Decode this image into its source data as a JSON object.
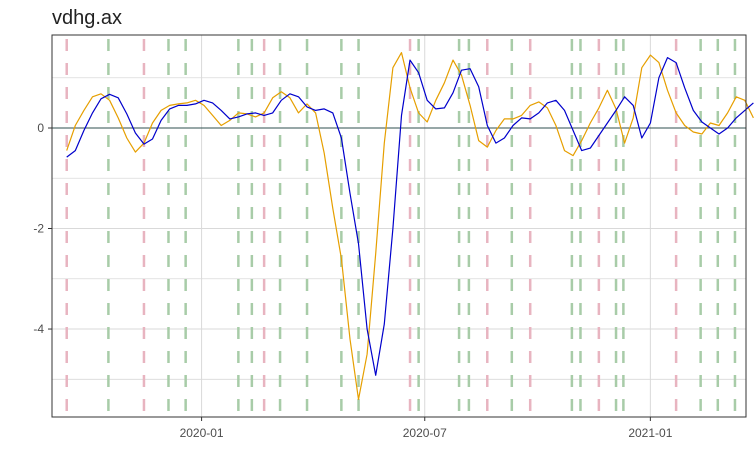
{
  "chart_data": {
    "type": "line",
    "title": "vdhg.ax",
    "xlabel": "",
    "ylabel": "",
    "x_range": [
      "2019-09-01",
      "2021-03-20"
    ],
    "ylim": [
      -5.75,
      1.85
    ],
    "x_ticks": [
      {
        "date": "2020-01-01",
        "label": "2020-01"
      },
      {
        "date": "2020-07-01",
        "label": "2020-07"
      },
      {
        "date": "2021-01-01",
        "label": "2021-01"
      }
    ],
    "y_ticks": [
      {
        "value": 0,
        "label": "0"
      },
      {
        "value": -2,
        "label": "-2"
      },
      {
        "value": -4,
        "label": "-4"
      }
    ],
    "y_minor_ticks": [
      1,
      -1,
      -3,
      -5
    ],
    "grid": true,
    "zero_line": true,
    "colors": {
      "series_dark": "#0000cc",
      "series_light": "#e69f00",
      "vline_red": "#e8b4c0",
      "vline_green": "#a8cca8",
      "grid": "#d9d9d9",
      "zero_line": "#2f4f4f",
      "axis": "#333333"
    },
    "vlines_red": [
      "2019-09-13",
      "2019-11-15",
      "2020-02-21",
      "2020-06-19",
      "2020-08-21",
      "2020-09-25",
      "2020-11-20",
      "2021-01-22"
    ],
    "vlines_green": [
      "2019-10-17",
      "2019-12-05",
      "2019-12-19",
      "2020-01-31",
      "2020-02-11",
      "2020-03-05",
      "2020-03-27",
      "2020-04-24",
      "2020-05-08",
      "2020-06-26",
      "2020-07-29",
      "2020-08-06",
      "2020-09-10",
      "2020-10-29",
      "2020-11-05",
      "2020-12-04",
      "2020-12-10",
      "2021-02-11",
      "2021-02-25",
      "2021-03-11"
    ],
    "series": [
      {
        "color": "dark",
        "points": [
          [
            "2019-09-13",
            -0.58
          ],
          [
            "2019-09-20",
            -0.45
          ],
          [
            "2019-09-27",
            -0.05
          ],
          [
            "2019-10-04",
            0.3
          ],
          [
            "2019-10-11",
            0.58
          ],
          [
            "2019-10-18",
            0.67
          ],
          [
            "2019-10-25",
            0.6
          ],
          [
            "2019-11-01",
            0.28
          ],
          [
            "2019-11-08",
            -0.1
          ],
          [
            "2019-11-15",
            -0.32
          ],
          [
            "2019-11-22",
            -0.22
          ],
          [
            "2019-11-29",
            0.15
          ],
          [
            "2019-12-06",
            0.38
          ],
          [
            "2019-12-13",
            0.45
          ],
          [
            "2019-12-20",
            0.45
          ],
          [
            "2019-12-27",
            0.48
          ],
          [
            "2020-01-03",
            0.55
          ],
          [
            "2020-01-10",
            0.5
          ],
          [
            "2020-01-17",
            0.35
          ],
          [
            "2020-01-24",
            0.18
          ],
          [
            "2020-01-31",
            0.22
          ],
          [
            "2020-02-07",
            0.28
          ],
          [
            "2020-02-14",
            0.3
          ],
          [
            "2020-02-21",
            0.25
          ],
          [
            "2020-02-28",
            0.3
          ],
          [
            "2020-03-06",
            0.55
          ],
          [
            "2020-03-13",
            0.68
          ],
          [
            "2020-03-20",
            0.62
          ],
          [
            "2020-03-27",
            0.42
          ],
          [
            "2020-04-03",
            0.35
          ],
          [
            "2020-04-10",
            0.38
          ],
          [
            "2020-04-17",
            0.3
          ],
          [
            "2020-04-24",
            -0.2
          ],
          [
            "2020-05-01",
            -1.3
          ],
          [
            "2020-05-08",
            -2.3
          ],
          [
            "2020-05-15",
            -4.0
          ],
          [
            "2020-05-22",
            -4.92
          ],
          [
            "2020-05-29",
            -3.9
          ],
          [
            "2020-06-05",
            -2.0
          ],
          [
            "2020-06-12",
            0.25
          ],
          [
            "2020-06-19",
            1.35
          ],
          [
            "2020-06-26",
            1.1
          ],
          [
            "2020-07-03",
            0.55
          ],
          [
            "2020-07-10",
            0.38
          ],
          [
            "2020-07-17",
            0.4
          ],
          [
            "2020-07-24",
            0.7
          ],
          [
            "2020-07-31",
            1.15
          ],
          [
            "2020-08-07",
            1.18
          ],
          [
            "2020-08-14",
            0.82
          ],
          [
            "2020-08-21",
            0.05
          ],
          [
            "2020-08-28",
            -0.3
          ],
          [
            "2020-09-04",
            -0.2
          ],
          [
            "2020-09-11",
            0.05
          ],
          [
            "2020-09-18",
            0.2
          ],
          [
            "2020-09-25",
            0.18
          ],
          [
            "2020-10-02",
            0.3
          ],
          [
            "2020-10-09",
            0.5
          ],
          [
            "2020-10-16",
            0.55
          ],
          [
            "2020-10-23",
            0.35
          ],
          [
            "2020-10-30",
            -0.05
          ],
          [
            "2020-11-06",
            -0.45
          ],
          [
            "2020-11-13",
            -0.4
          ],
          [
            "2020-11-20",
            -0.15
          ],
          [
            "2020-11-27",
            0.1
          ],
          [
            "2020-12-04",
            0.35
          ],
          [
            "2020-12-11",
            0.62
          ],
          [
            "2020-12-18",
            0.45
          ],
          [
            "2020-12-25",
            -0.2
          ],
          [
            "2021-01-01",
            0.1
          ],
          [
            "2021-01-08",
            1.0
          ],
          [
            "2021-01-15",
            1.4
          ],
          [
            "2021-01-22",
            1.3
          ],
          [
            "2021-01-29",
            0.8
          ],
          [
            "2021-02-05",
            0.35
          ],
          [
            "2021-02-12",
            0.12
          ],
          [
            "2021-02-19",
            0.0
          ],
          [
            "2021-02-26",
            -0.12
          ],
          [
            "2021-03-05",
            0.0
          ],
          [
            "2021-03-12",
            0.2
          ],
          [
            "2021-03-19",
            0.35
          ],
          [
            "2021-03-26",
            0.5
          ]
        ]
      },
      {
        "color": "light",
        "points": [
          [
            "2019-09-13",
            -0.45
          ],
          [
            "2019-09-20",
            0.05
          ],
          [
            "2019-09-27",
            0.35
          ],
          [
            "2019-10-04",
            0.62
          ],
          [
            "2019-10-11",
            0.68
          ],
          [
            "2019-10-18",
            0.55
          ],
          [
            "2019-10-25",
            0.2
          ],
          [
            "2019-11-01",
            -0.2
          ],
          [
            "2019-11-08",
            -0.48
          ],
          [
            "2019-11-15",
            -0.3
          ],
          [
            "2019-11-22",
            0.1
          ],
          [
            "2019-11-29",
            0.35
          ],
          [
            "2019-12-06",
            0.45
          ],
          [
            "2019-12-13",
            0.48
          ],
          [
            "2019-12-20",
            0.5
          ],
          [
            "2019-12-27",
            0.55
          ],
          [
            "2020-01-03",
            0.45
          ],
          [
            "2020-01-10",
            0.25
          ],
          [
            "2020-01-17",
            0.05
          ],
          [
            "2020-01-24",
            0.15
          ],
          [
            "2020-01-31",
            0.3
          ],
          [
            "2020-02-07",
            0.28
          ],
          [
            "2020-02-14",
            0.22
          ],
          [
            "2020-02-21",
            0.3
          ],
          [
            "2020-02-28",
            0.6
          ],
          [
            "2020-03-06",
            0.72
          ],
          [
            "2020-03-13",
            0.6
          ],
          [
            "2020-03-20",
            0.3
          ],
          [
            "2020-03-27",
            0.48
          ],
          [
            "2020-04-03",
            0.3
          ],
          [
            "2020-04-10",
            -0.5
          ],
          [
            "2020-04-17",
            -1.6
          ],
          [
            "2020-04-24",
            -2.6
          ],
          [
            "2020-05-01",
            -4.2
          ],
          [
            "2020-05-08",
            -5.4
          ],
          [
            "2020-05-15",
            -4.5
          ],
          [
            "2020-05-22",
            -2.5
          ],
          [
            "2020-05-29",
            -0.3
          ],
          [
            "2020-06-05",
            1.2
          ],
          [
            "2020-06-12",
            1.5
          ],
          [
            "2020-06-19",
            0.8
          ],
          [
            "2020-06-26",
            0.3
          ],
          [
            "2020-07-03",
            0.12
          ],
          [
            "2020-07-10",
            0.55
          ],
          [
            "2020-07-17",
            0.9
          ],
          [
            "2020-07-24",
            1.35
          ],
          [
            "2020-07-31",
            1.05
          ],
          [
            "2020-08-07",
            0.45
          ],
          [
            "2020-08-14",
            -0.25
          ],
          [
            "2020-08-21",
            -0.38
          ],
          [
            "2020-08-28",
            -0.05
          ],
          [
            "2020-09-04",
            0.18
          ],
          [
            "2020-09-11",
            0.18
          ],
          [
            "2020-09-18",
            0.25
          ],
          [
            "2020-09-25",
            0.45
          ],
          [
            "2020-10-02",
            0.52
          ],
          [
            "2020-10-09",
            0.4
          ],
          [
            "2020-10-16",
            0.05
          ],
          [
            "2020-10-23",
            -0.45
          ],
          [
            "2020-10-30",
            -0.55
          ],
          [
            "2020-11-06",
            -0.25
          ],
          [
            "2020-11-13",
            0.1
          ],
          [
            "2020-11-20",
            0.4
          ],
          [
            "2020-11-27",
            0.75
          ],
          [
            "2020-12-04",
            0.38
          ],
          [
            "2020-12-11",
            -0.3
          ],
          [
            "2020-12-18",
            0.2
          ],
          [
            "2020-12-25",
            1.2
          ],
          [
            "2021-01-01",
            1.45
          ],
          [
            "2021-01-08",
            1.3
          ],
          [
            "2021-01-15",
            0.75
          ],
          [
            "2021-01-22",
            0.3
          ],
          [
            "2021-01-29",
            0.05
          ],
          [
            "2021-02-05",
            -0.08
          ],
          [
            "2021-02-12",
            -0.12
          ],
          [
            "2021-02-19",
            0.1
          ],
          [
            "2021-02-26",
            0.05
          ],
          [
            "2021-03-05",
            0.3
          ],
          [
            "2021-03-12",
            0.62
          ],
          [
            "2021-03-19",
            0.55
          ],
          [
            "2021-03-26",
            0.2
          ]
        ]
      }
    ]
  }
}
